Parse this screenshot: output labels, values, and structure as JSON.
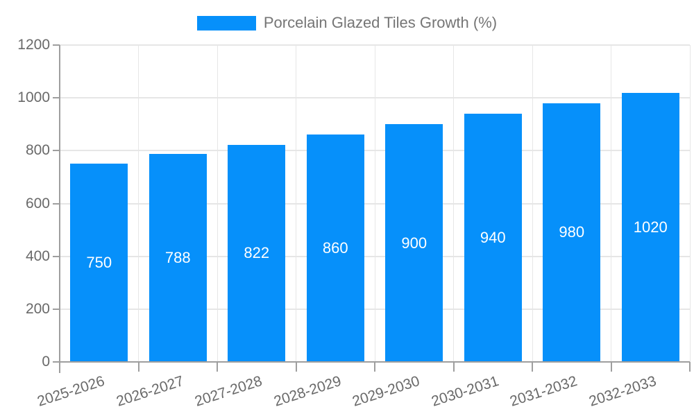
{
  "legend": {
    "label": "Porcelain Glazed Tiles Growth (%)"
  },
  "colors": {
    "background": "#ffffff",
    "bar": "#0690fa",
    "grid": "#e6e6e6",
    "axis": "#9e9e9e",
    "axis_label": "#696969",
    "legend_text": "#757575",
    "bar_label": "#ffffff"
  },
  "chart_data": {
    "type": "bar",
    "title": "Porcelain Glazed Tiles Growth (%)",
    "series": [
      {
        "name": "Porcelain Glazed Tiles Growth (%)",
        "values": [
          750,
          788,
          822,
          860,
          900,
          940,
          980,
          1020
        ]
      }
    ],
    "categories": [
      "2025-2026",
      "2026-2027",
      "2027-2028",
      "2028-2029",
      "2029-2030",
      "2030-2031",
      "2031-2032",
      "2032-2033"
    ],
    "bar_value_labels": [
      "750",
      "788",
      "822",
      "860",
      "900",
      "940",
      "980",
      "1020"
    ],
    "xlabel": "",
    "ylabel": "",
    "ylim": [
      0,
      1200
    ],
    "yticks": [
      0,
      200,
      400,
      600,
      800,
      1000,
      1200
    ],
    "ytick_labels": [
      "0",
      "200",
      "400",
      "600",
      "800",
      "1000",
      "1200"
    ],
    "grid": true,
    "legend_position": "top-center",
    "x_tick_label_rotation_deg": -18
  }
}
